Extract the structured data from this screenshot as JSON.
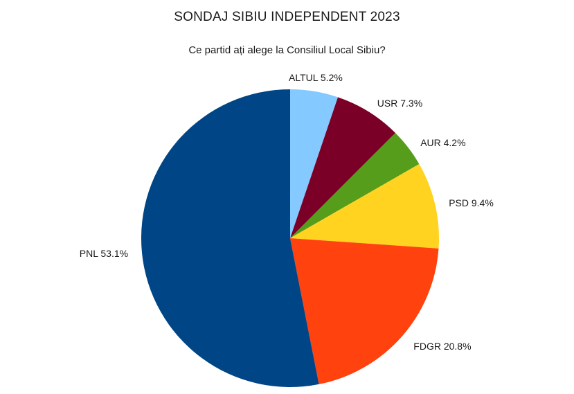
{
  "chart_data": {
    "type": "pie",
    "title": "SONDAJ SIBIU INDEPENDENT 2023",
    "subtitle": "Ce partid ați alege la Consiliul Local Sibiu?",
    "slices": [
      {
        "label": "ALTUL",
        "value": 5.2,
        "text": "ALTUL  5.2%",
        "color": "#84c9ff"
      },
      {
        "label": "USR",
        "value": 7.3,
        "text": "USR 7.3%",
        "color": "#7b0027"
      },
      {
        "label": "AUR",
        "value": 4.2,
        "text": "AUR 4.2%",
        "color": "#579d1c"
      },
      {
        "label": "PSD",
        "value": 9.4,
        "text": "PSD 9.4%",
        "color": "#ffd320"
      },
      {
        "label": "FDGR",
        "value": 20.8,
        "text": "FDGR 20.8%",
        "color": "#ff420e"
      },
      {
        "label": "PNL",
        "value": 53.1,
        "text": "PNL  53.1%",
        "color": "#004586"
      }
    ],
    "start_angle": "12 o'clock",
    "direction": "clockwise",
    "legend": "none"
  }
}
